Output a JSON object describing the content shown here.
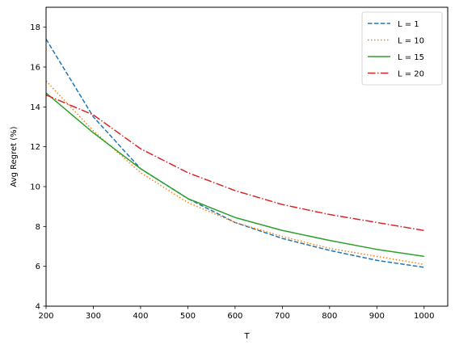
{
  "chart_data": {
    "type": "line",
    "title": "",
    "xlabel": "T",
    "ylabel": "Avg Regret (%)",
    "xlim": [
      200,
      1050
    ],
    "ylim": [
      4,
      19
    ],
    "xticks": [
      200,
      300,
      400,
      500,
      600,
      700,
      800,
      900,
      1000
    ],
    "yticks": [
      4,
      6,
      8,
      10,
      12,
      14,
      16,
      18
    ],
    "grid": false,
    "legend_position": "top-right",
    "x": [
      200,
      300,
      400,
      500,
      600,
      700,
      800,
      900,
      1000
    ],
    "series": [
      {
        "name": "L = 1",
        "color": "#1f77b4",
        "dash": "dashed",
        "values": [
          17.4,
          13.5,
          10.9,
          9.4,
          8.2,
          7.4,
          6.8,
          6.3,
          5.95
        ]
      },
      {
        "name": "L = 10",
        "color": "#ff7f0e",
        "dash": "dotted",
        "values": [
          15.3,
          12.8,
          10.7,
          9.2,
          8.2,
          7.5,
          6.9,
          6.5,
          6.1
        ]
      },
      {
        "name": "L = 15",
        "color": "#2ca02c",
        "dash": "solid",
        "values": [
          14.7,
          12.7,
          10.9,
          9.4,
          8.45,
          7.8,
          7.3,
          6.85,
          6.5
        ]
      },
      {
        "name": "L = 20",
        "color": "#d62728",
        "dash": "dashdot",
        "values": [
          14.6,
          13.6,
          11.9,
          10.7,
          9.8,
          9.1,
          8.6,
          8.2,
          7.8
        ]
      }
    ]
  }
}
